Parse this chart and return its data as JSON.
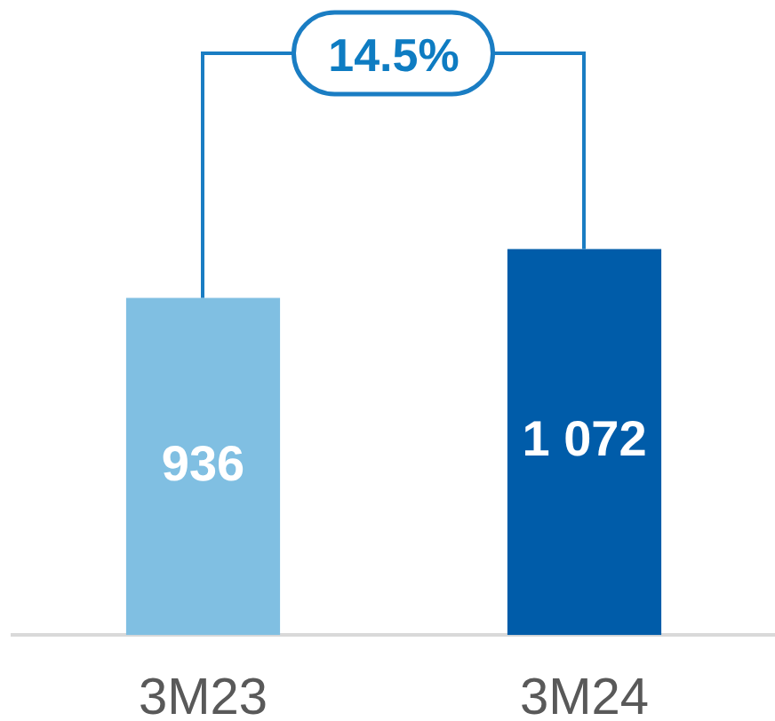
{
  "chart_data": {
    "type": "bar",
    "categories": [
      "3M23",
      "3M24"
    ],
    "values": [
      936,
      1072
    ],
    "colors": [
      "#80bfe2",
      "#005ca9"
    ],
    "value_labels": [
      "936",
      "1 072"
    ],
    "annotations": [
      "14.5%"
    ],
    "tick_labels": "x",
    "grid": false,
    "legend": false
  }
}
